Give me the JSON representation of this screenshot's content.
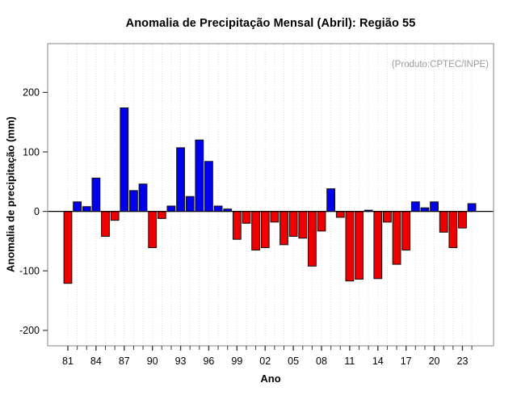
{
  "chart_data": {
    "type": "bar",
    "title": "Anomalia de Precipitação Mensal (Abril): Região 55",
    "xlabel": "Ano",
    "ylabel": "Anomalia de precipitação (mm)",
    "annotation": "(Produto:CPTEC/INPE)",
    "categories": [
      "81",
      "82",
      "83",
      "84",
      "85",
      "86",
      "87",
      "88",
      "89",
      "90",
      "91",
      "92",
      "93",
      "94",
      "95",
      "96",
      "97",
      "98",
      "99",
      "00",
      "01",
      "02",
      "03",
      "04",
      "05",
      "06",
      "07",
      "08",
      "09",
      "10",
      "11",
      "12",
      "13",
      "14",
      "15",
      "16",
      "17",
      "18",
      "19",
      "20",
      "21",
      "22",
      "23",
      "24"
    ],
    "values": [
      -121,
      16,
      8,
      56,
      -42,
      -15,
      174,
      35,
      46,
      -61,
      -12,
      9,
      107,
      25,
      120,
      84,
      9,
      4,
      -47,
      -20,
      -65,
      -61,
      -18,
      -56,
      -42,
      -45,
      -92,
      -33,
      38,
      -10,
      -117,
      -114,
      2,
      -113,
      -18,
      -89,
      -65,
      16,
      6,
      16,
      -35,
      -61,
      -28,
      13
    ],
    "x_tick_labels": [
      "81",
      "84",
      "87",
      "90",
      "93",
      "96",
      "99",
      "02",
      "05",
      "08",
      "11",
      "14",
      "17",
      "20",
      "23"
    ],
    "x_label_every": 3,
    "y_ticks": [
      -200,
      -100,
      0,
      100,
      200
    ],
    "ylim": [
      -226,
      282
    ],
    "grid": "dotted-vertical",
    "legend": "none",
    "positive_color": "#0000ee",
    "negative_color": "#ee0000",
    "bar_border_color": "#111111",
    "grid_color": "#dbdbdb",
    "box_color": "#999999",
    "tick_color": "#3a3a3a",
    "annotation_color": "#9a9a9a"
  }
}
